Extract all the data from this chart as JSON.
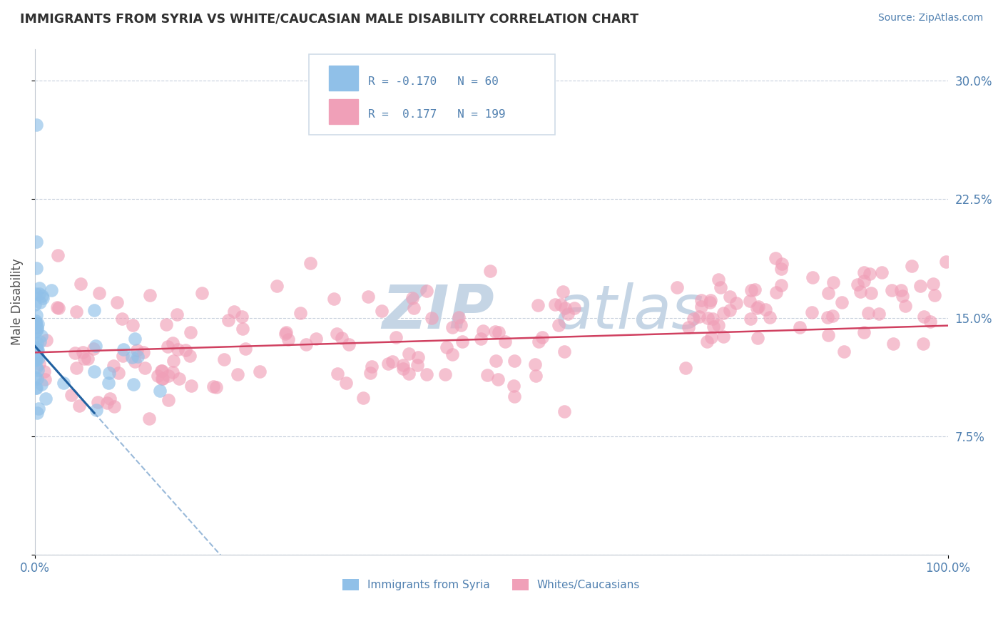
{
  "title": "IMMIGRANTS FROM SYRIA VS WHITE/CAUCASIAN MALE DISABILITY CORRELATION CHART",
  "source": "Source: ZipAtlas.com",
  "ylabel": "Male Disability",
  "xlim": [
    0.0,
    100.0
  ],
  "ylim": [
    0.0,
    32.0
  ],
  "yticks": [
    0.0,
    7.5,
    15.0,
    22.5,
    30.0
  ],
  "ytick_labels": [
    "",
    "7.5%",
    "15.0%",
    "22.5%",
    "30.0%"
  ],
  "xtick_labels": [
    "0.0%",
    "100.0%"
  ],
  "legend_label1": "Immigrants from Syria",
  "legend_label2": "Whites/Caucasians",
  "blue_color": "#90C0E8",
  "pink_color": "#F0A0B8",
  "blue_line_color": "#2060A0",
  "blue_dash_color": "#80A8D0",
  "pink_line_color": "#D04060",
  "title_color": "#303030",
  "source_color": "#5080B0",
  "axis_label_color": "#505050",
  "tick_label_color": "#5080B0",
  "watermark_color": "#C5D5E5",
  "background_color": "#FFFFFF",
  "grid_color": "#C8D0DC",
  "legend_box_color": "#D0DCE8",
  "blue_R": "-0.170",
  "blue_N": "60",
  "pink_R": "0.177",
  "pink_N": "199",
  "blue_intercept": 13.2,
  "blue_slope": -0.65,
  "blue_solid_end": 6.5,
  "pink_intercept": 12.8,
  "pink_slope": 0.017
}
